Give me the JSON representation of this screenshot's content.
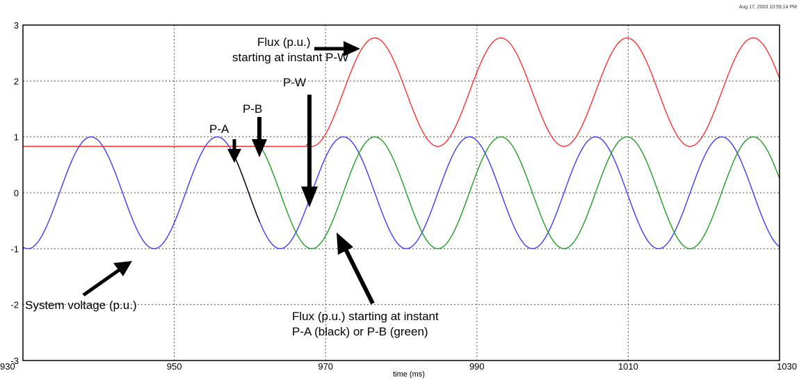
{
  "timestamp": "Aug 17, 2003 10:59:14 PM",
  "chart_data": {
    "type": "line",
    "xlabel": "time (ms)",
    "ylabel": "",
    "xlim": [
      930,
      1030
    ],
    "ylim": [
      -3,
      3
    ],
    "x_ticks": [
      "930",
      "950",
      "970",
      "990",
      "1010",
      "1030"
    ],
    "y_ticks": [
      "3",
      "2",
      "1",
      "0",
      "-1",
      "-2",
      "-3"
    ],
    "grid": true,
    "series": [
      {
        "name": "System voltage (p.u.)",
        "color": "#3a3aff",
        "type": "cos",
        "period_ms": 16.67,
        "peak_at_ms": 939.0,
        "amplitude": 1.0,
        "offset": 0.0,
        "from_ms": 930,
        "to_ms": 1030
      },
      {
        "name": "Flux (p.u.) starting at instant P-A (black)",
        "color": "#000000",
        "from_ms": 957.9,
        "to_ms": 961.3
      },
      {
        "name": "Flux (p.u.) starting at instant P-B (green)",
        "color": "#1e9e1e",
        "constant_value": 0.83,
        "constant_until_ms": 961.3,
        "type": "cos",
        "period_ms": 16.67,
        "peak_at_ms": 976.5,
        "amplitude": 1.0,
        "offset": 0.0
      },
      {
        "name": "Flux (p.u.) starting at instant P-W",
        "color": "#ff3030",
        "constant_value": 0.83,
        "constant_until_ms": 967.5,
        "type": "cos",
        "period_ms": 16.67,
        "peak_at_ms": 976.5,
        "amplitude": 0.97,
        "offset": 1.8
      }
    ],
    "annotations": [
      {
        "text": "Flux (p.u.)"
      },
      {
        "text": "starting at instant P-W"
      },
      {
        "text": "P-W"
      },
      {
        "text": "P-B"
      },
      {
        "text": "P-A"
      },
      {
        "text": "System voltage (p.u.)"
      },
      {
        "text": "Flux (p.u.) starting at instant"
      },
      {
        "text": "P-A (black) or P-B (green)"
      }
    ]
  }
}
